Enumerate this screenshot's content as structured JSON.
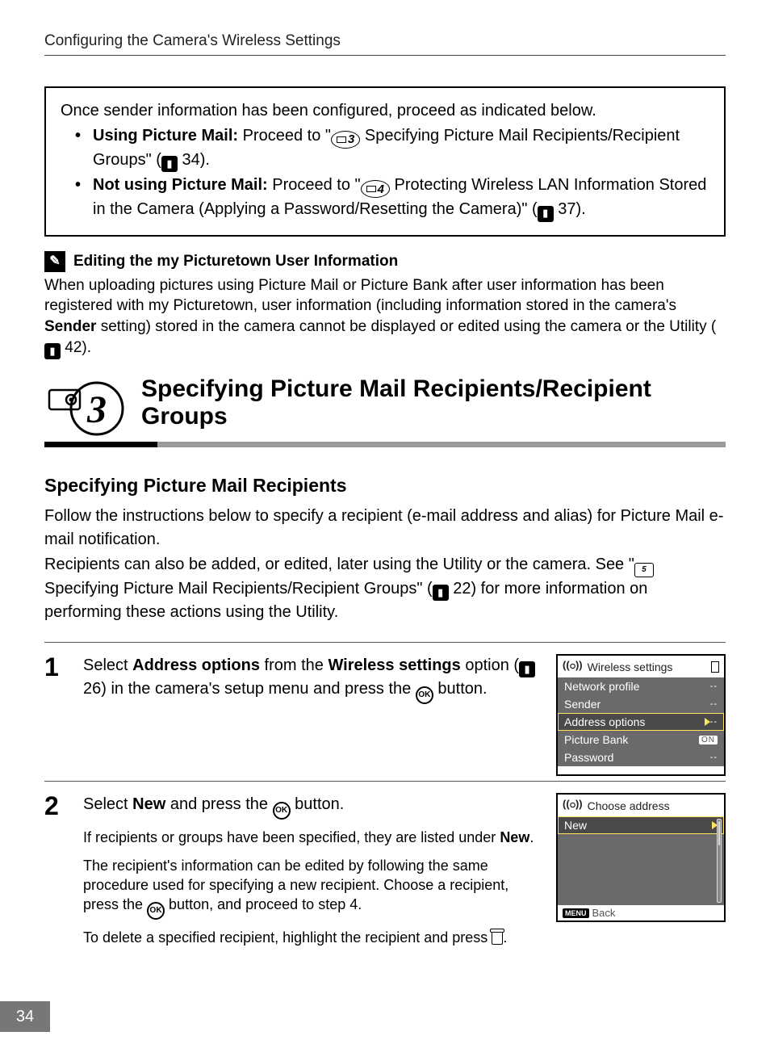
{
  "header": {
    "title": "Configuring the Camera's Wireless Settings"
  },
  "callout": {
    "intro": "Once sender information has been configured, proceed as indicated below.",
    "item1_label": "Using Picture Mail:",
    "item1_text_a": " Proceed to \"",
    "item1_badge": "3",
    "item1_text_b": " Specifying Picture Mail Recipients/Recipient Groups\" (",
    "item1_ref": "34",
    "item1_text_c": ").",
    "item2_label": "Not using Picture Mail:",
    "item2_text_a": " Proceed to \"",
    "item2_badge": "4",
    "item2_text_b": " Protecting Wireless LAN Information Stored in the Camera (Applying a Password/Resetting the Camera)\" (",
    "item2_ref": "37",
    "item2_text_c": ")."
  },
  "note": {
    "heading": "Editing the my Picturetown User Information",
    "text_a": "When uploading pictures using Picture Mail or Picture Bank after user information has been registered with my Picturetown, user information (including information stored in the camera's ",
    "bold": "Sender",
    "text_b": " setting) stored in the camera cannot be displayed or edited using the camera or the Utility (",
    "ref": "42",
    "text_c": ")."
  },
  "banner": {
    "num": "3",
    "title": "Specifying Picture Mail Recipients/Recipient Groups"
  },
  "subhead": "Specifying Picture Mail Recipients",
  "intro": {
    "p1": "Follow the instructions below to specify a recipient (e-mail address and alias) for Picture Mail e-mail notification.",
    "p2a": "Recipients can also be added, or edited, later using the Utility or the camera. See \"",
    "p2_badge": "5",
    "p2b": " Specifying Picture Mail Recipients/Recipient Groups\" (",
    "p2_ref": "22",
    "p2c": ") for more information on performing these actions using the Utility."
  },
  "step1": {
    "num": "1",
    "a": "Select ",
    "bold1": "Address options",
    "b": " from the ",
    "bold2": "Wireless settings",
    "c": " option (",
    "ref": "26",
    "d": ") in the camera's setup menu and press the ",
    "e": " button.",
    "screen": {
      "title": "Wireless settings",
      "items": [
        {
          "label": "Network profile",
          "val": "--"
        },
        {
          "label": "Sender",
          "val": "--"
        },
        {
          "label": "Address options",
          "val": "--",
          "selected": true
        },
        {
          "label": "Picture Bank",
          "val": "ON",
          "on": true
        },
        {
          "label": "Password",
          "val": "--"
        }
      ]
    }
  },
  "step2": {
    "num": "2",
    "a": "Select ",
    "bold1": "New",
    "b": " and press the ",
    "c": " button.",
    "sub1a": "If recipients or groups have been specified, they are listed under ",
    "sub1b": "New",
    "sub1c": ".",
    "sub2a": "The recipient's information can be edited by following the same procedure used for specifying a new recipient. Choose a recipient, press the ",
    "sub2b": " button, and proceed to step 4.",
    "sub3a": "To delete a specified recipient, highlight the recipient and press ",
    "sub3b": ".",
    "screen": {
      "title": "Choose address",
      "item": "New",
      "back": "Back"
    }
  },
  "page_num": "34",
  "ok_label": "OK",
  "menu_label": "MENU"
}
